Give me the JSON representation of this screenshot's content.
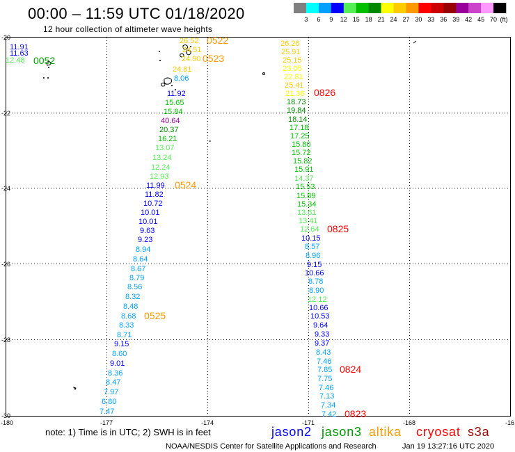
{
  "header": {
    "title": "00:00 – 11:59 UTC 01/18/2020",
    "subtitle": "12 hour collection of altimeter wave heights"
  },
  "color_scale": {
    "colors": [
      "#808080",
      "#00ffff",
      "#00a0ff",
      "#0000ff",
      "#55ee55",
      "#00c000",
      "#008800",
      "#ffff00",
      "#ffcc00",
      "#ff9900",
      "#ff0000",
      "#cc0000",
      "#990000",
      "#990099",
      "#cc44cc",
      "#ff99ff",
      "#000000"
    ],
    "labels": [
      "3",
      "6",
      "9",
      "12",
      "15",
      "18",
      "21",
      "24",
      "27",
      "30",
      "33",
      "36",
      "39",
      "42",
      "45",
      "70"
    ],
    "unit": "(ft)"
  },
  "map": {
    "lat_labels": [
      "-20",
      "-22",
      "-24",
      "-26",
      "-28",
      "-30"
    ],
    "lon_labels": [
      "-180",
      "-177",
      "-174",
      "-171",
      "-168",
      "-16"
    ],
    "tracks": [
      {
        "values": [
          "11.91",
          "11.63",
          "12.48"
        ]
      },
      {
        "values": [
          "26.52",
          "24.51",
          "24.90",
          "24.81",
          "8.06",
          "11.92",
          "15.65",
          "15.84",
          "40.64",
          "20.37",
          "16.21",
          "13.07",
          "13.24",
          "12.24",
          "12.93",
          "11.99",
          "11.82",
          "10.72",
          "10.01",
          "10.01",
          "9.63",
          "9.23",
          "8.94",
          "8.64",
          "8.67",
          "8.79",
          "8.56",
          "8.32",
          "8.48",
          "8.68",
          "8.33",
          "8.71",
          "9.15",
          "8.60",
          "9.01",
          "8.36",
          "8.47",
          "7.97",
          "6.80",
          "7.47"
        ]
      },
      {
        "values": [
          "26.26",
          "25.91",
          "25.15",
          "23.05",
          "22.81",
          "25.41",
          "21.36",
          "18.73",
          "19.84",
          "18.14",
          "17.18",
          "17.25",
          "15.80",
          "15.72",
          "15.82",
          "15.91",
          "14.37",
          "15.53",
          "15.89",
          "15.34",
          "13.61",
          "13.41",
          "12.64",
          "10.15",
          "8.57",
          "8.96",
          "9.15",
          "10.66",
          "8.78",
          "8.90",
          "12.12",
          "10.66",
          "10.53",
          "9.64",
          "9.33",
          "9.37",
          "8.43",
          "7.46",
          "7.85",
          "7.75",
          "7.46",
          "7.13",
          "7.34",
          "7.42"
        ]
      }
    ],
    "pass_labels": [
      {
        "text": "0052",
        "color": "#009900"
      },
      {
        "text": "0522",
        "color": "#ff9900"
      },
      {
        "text": "0523",
        "color": "#ff9900"
      },
      {
        "text": "0524",
        "color": "#ff9900"
      },
      {
        "text": "0525",
        "color": "#ff9900"
      },
      {
        "text": "0826",
        "color": "#ff0000"
      },
      {
        "text": "0825",
        "color": "#ff0000"
      },
      {
        "text": "0824",
        "color": "#ff0000"
      },
      {
        "text": "0823",
        "color": "#ff0000"
      }
    ]
  },
  "footer": {
    "note": "note: 1) Time is in UTC; 2) SWH is in feet",
    "satellites": [
      {
        "name": "jason2",
        "color": "#0000ff"
      },
      {
        "name": "jason3",
        "color": "#009900"
      },
      {
        "name": "altika",
        "color": "#ff9900"
      },
      {
        "name": "cryosat",
        "color": "#ff0000"
      },
      {
        "name": "s3a",
        "color": "#990000"
      }
    ],
    "credit": "NOAA/NESDIS Center for Satellite Applications and Research",
    "timestamp": "Jan 19 13:27:16 UTC 2020"
  }
}
